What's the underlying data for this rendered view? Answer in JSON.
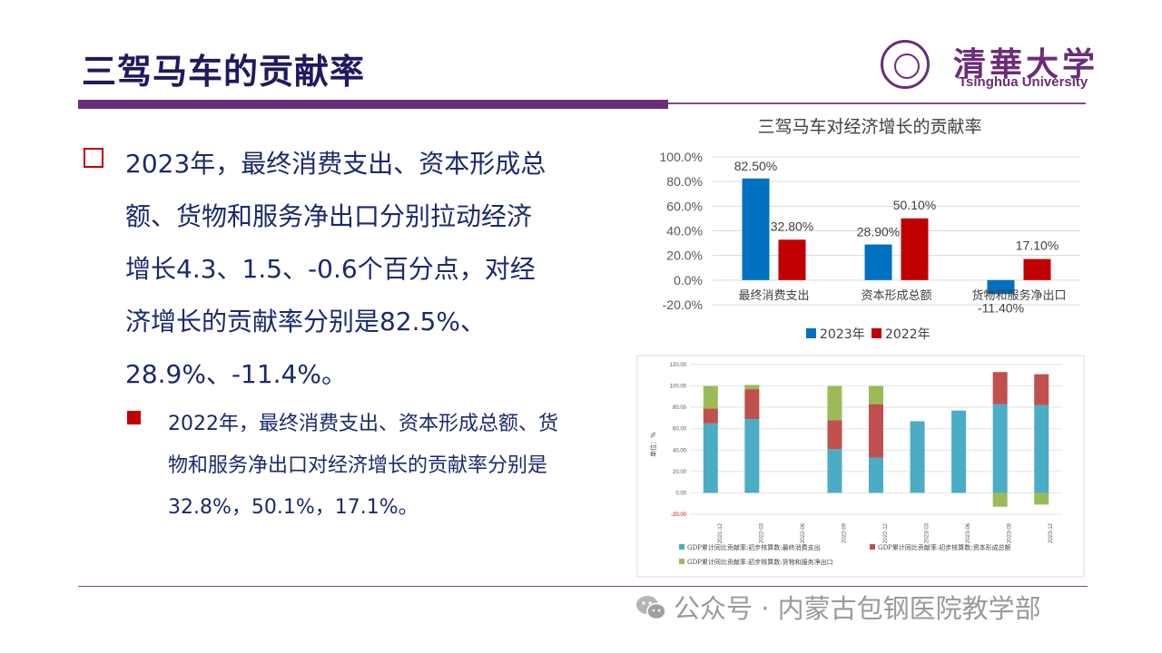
{
  "slide": {
    "title": "三驾马车的贡献率",
    "main_text": "2023年，最终消费支出、资本形成总额、货物和服务净出口分别拉动经济增长4.3、1.5、-0.6个百分点，对经济增长的贡献率分别是82.5%、28.9%、-11.4%。",
    "sub_text": "2022年，最终消费支出、资本形成总额、货物和服务净出口对经济增长的贡献率分别是32.8%，50.1%，17.1%。"
  },
  "logo": {
    "cn": "清華大学",
    "en": "Tsinghua University"
  },
  "watermark": {
    "text": "公众号 · 内蒙古包钢医院教学部",
    "icon": "wechat-icon"
  },
  "colors": {
    "title": "#1f1a5e",
    "accent": "#6b2d78",
    "bullet": "#c00000",
    "text": "#1a2a6c"
  },
  "chart_data": [
    {
      "type": "bar",
      "title": "三驾马车对经济增长的贡献率",
      "categories": [
        "最终消费支出",
        "资本形成总额",
        "货物和服务净出口"
      ],
      "series": [
        {
          "name": "2023年",
          "values": [
            82.5,
            28.9,
            -11.4
          ],
          "labels": [
            "82.50%",
            "28.90%",
            "-11.40%"
          ],
          "color": "#0070c0"
        },
        {
          "name": "2022年",
          "values": [
            32.8,
            50.1,
            17.1
          ],
          "labels": [
            "32.80%",
            "50.10%",
            "17.10%"
          ],
          "color": "#c00000"
        }
      ],
      "yticks": [
        "100.0%",
        "80.0%",
        "60.0%",
        "40.0%",
        "20.0%",
        "0.0%",
        "-20.0%"
      ],
      "ylim": [
        -20,
        100
      ],
      "grid": true,
      "legend": "bottom"
    },
    {
      "type": "bar",
      "stacked": true,
      "categories": [
        "2021-12",
        "2022-03",
        "2022-06",
        "2022-09",
        "2022-12",
        "2023-03",
        "2023-06",
        "2023-09",
        "2023-12"
      ],
      "ylabel": "单位：%",
      "yticks": [
        "120.00",
        "100.00",
        "80.00",
        "60.00",
        "40.00",
        "20.00",
        "0.00",
        "-20.00"
      ],
      "ylim": [
        -20,
        120
      ],
      "series": [
        {
          "name": "GDP累计同比贡献率:初步核算数:最终消费支出",
          "values": [
            65,
            69,
            0,
            41,
            33,
            67,
            77,
            83,
            82
          ],
          "color": "#4bacc6"
        },
        {
          "name": "GDP累计同比贡献率:初步核算数:资本形成总额",
          "values": [
            14,
            28,
            0,
            27,
            50,
            0,
            0,
            30,
            29
          ],
          "color": "#c0504d"
        },
        {
          "name": "GDP累计同比贡献率:初步核算数:货物和服务净出口",
          "values": [
            21,
            4,
            0,
            32,
            17,
            0,
            0,
            -13,
            -11
          ],
          "color": "#9bbb59"
        }
      ],
      "grid": true,
      "legend": "bottom"
    }
  ]
}
